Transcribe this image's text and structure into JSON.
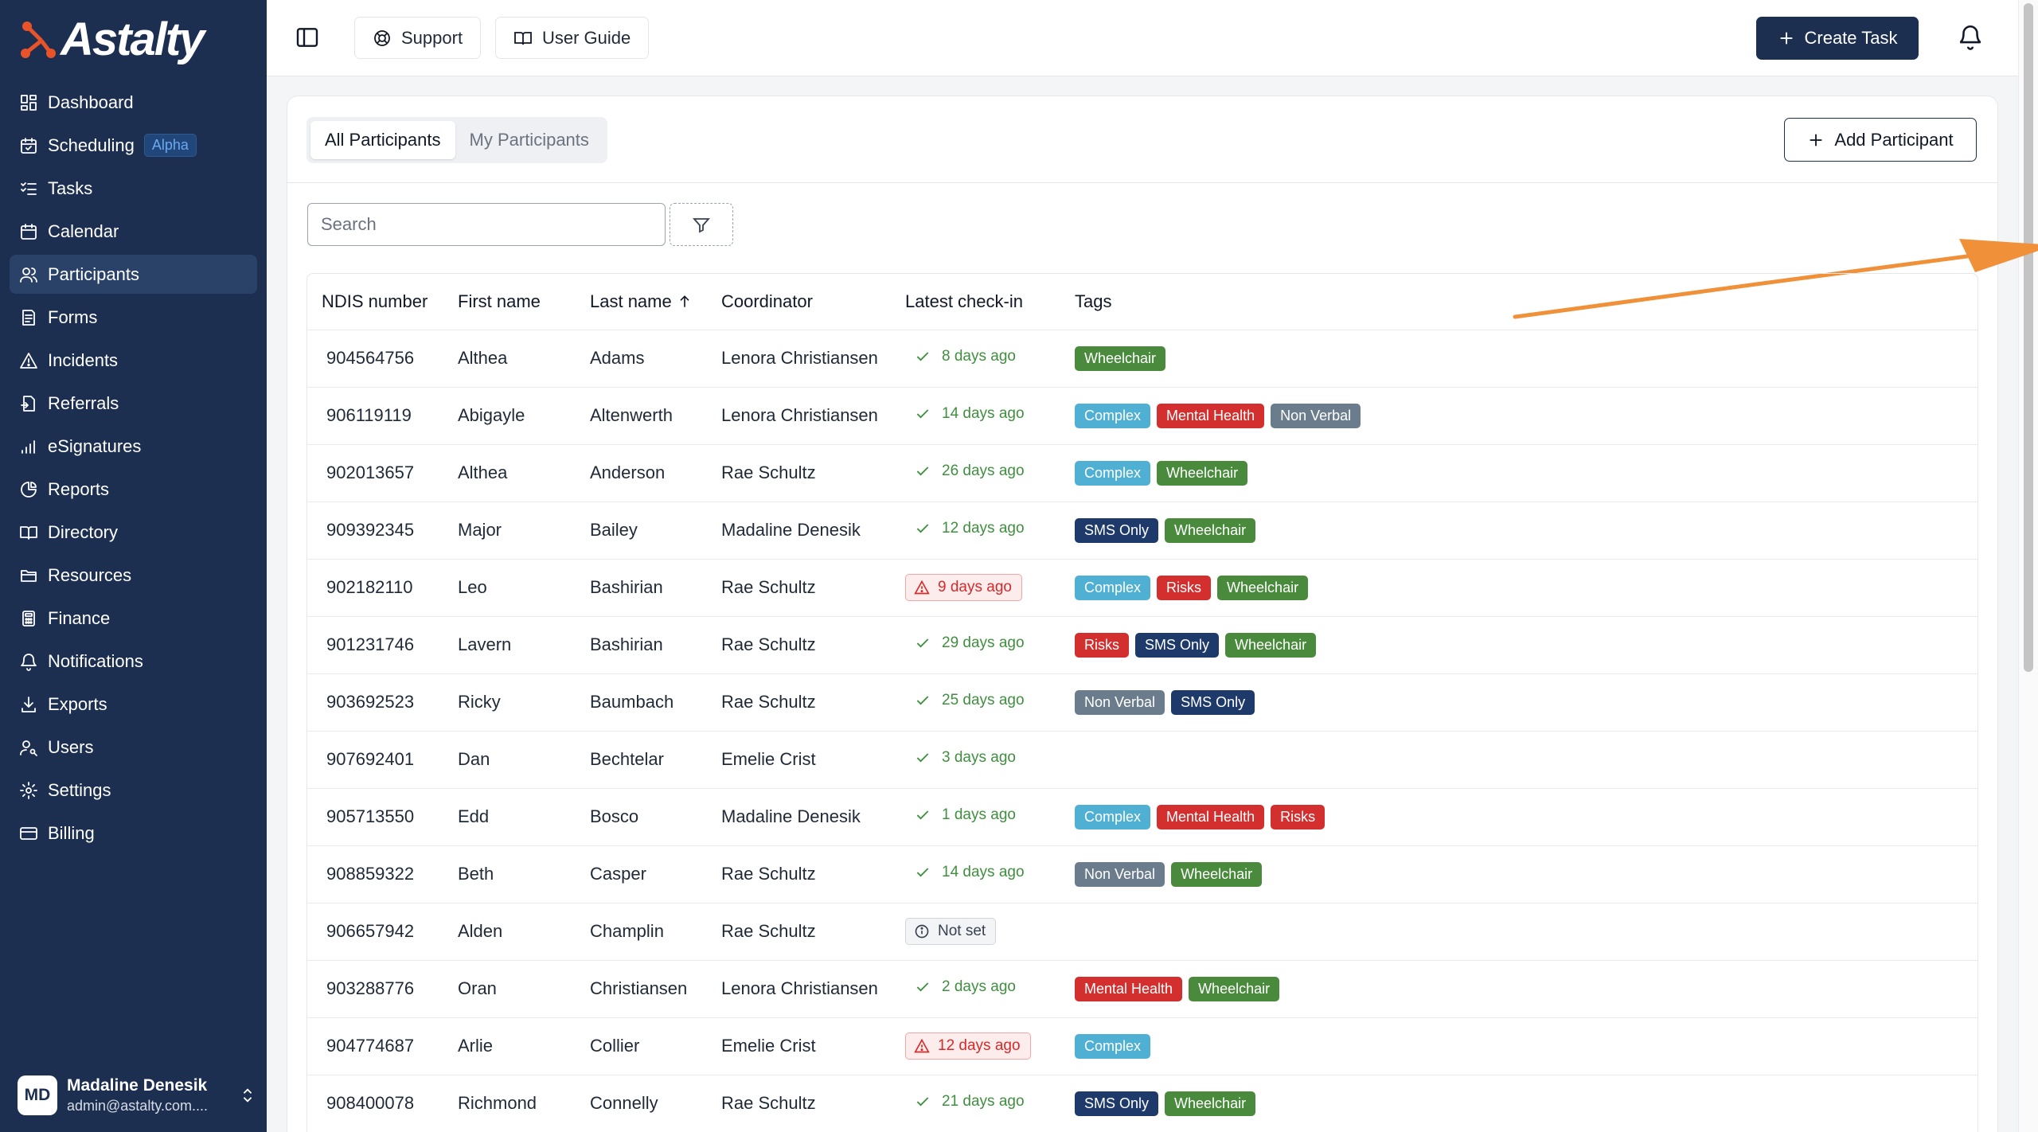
{
  "brand": {
    "name": "Astalty",
    "accent": "#e8532a"
  },
  "sidebar": {
    "items": [
      {
        "label": "Dashboard",
        "icon": "dashboard-icon"
      },
      {
        "label": "Scheduling",
        "icon": "calendar-check-icon",
        "badge": "Alpha"
      },
      {
        "label": "Tasks",
        "icon": "tasks-icon"
      },
      {
        "label": "Calendar",
        "icon": "calendar-icon"
      },
      {
        "label": "Participants",
        "icon": "users-icon",
        "active": true
      },
      {
        "label": "Forms",
        "icon": "form-icon"
      },
      {
        "label": "Incidents",
        "icon": "warning-icon"
      },
      {
        "label": "Referrals",
        "icon": "referral-icon"
      },
      {
        "label": "eSignatures",
        "icon": "signal-icon"
      },
      {
        "label": "Reports",
        "icon": "pie-chart-icon"
      },
      {
        "label": "Directory",
        "icon": "book-icon"
      },
      {
        "label": "Resources",
        "icon": "folder-icon"
      },
      {
        "label": "Finance",
        "icon": "calculator-icon"
      },
      {
        "label": "Notifications",
        "icon": "bell-icon"
      },
      {
        "label": "Exports",
        "icon": "download-icon"
      },
      {
        "label": "Users",
        "icon": "user-key-icon"
      },
      {
        "label": "Settings",
        "icon": "gear-icon"
      },
      {
        "label": "Billing",
        "icon": "credit-card-icon"
      }
    ],
    "user": {
      "initials": "MD",
      "name": "Madaline Denesik",
      "email": "admin@astalty.com...."
    }
  },
  "topbar": {
    "support_label": "Support",
    "guide_label": "User Guide",
    "create_task_label": "Create Task"
  },
  "main": {
    "tabs": [
      {
        "label": "All Participants",
        "active": true
      },
      {
        "label": "My Participants",
        "active": false
      }
    ],
    "add_participant_label": "Add Participant",
    "search": {
      "placeholder": "Search",
      "value": ""
    },
    "table": {
      "headers": {
        "ndis": "NDIS number",
        "first": "First name",
        "last": "Last name",
        "coordinator": "Coordinator",
        "checkin": "Latest check-in",
        "tags": "Tags"
      },
      "rows": [
        {
          "ndis": "904564756",
          "first": "Althea",
          "last": "Adams",
          "coordinator": "Lenora Christiansen",
          "checkin": "8 days ago",
          "status": "ok",
          "tags": [
            "Wheelchair"
          ]
        },
        {
          "ndis": "906119119",
          "first": "Abigayle",
          "last": "Altenwerth",
          "coordinator": "Lenora Christiansen",
          "checkin": "14 days ago",
          "status": "ok",
          "tags": [
            "Complex",
            "Mental Health",
            "Non Verbal"
          ]
        },
        {
          "ndis": "902013657",
          "first": "Althea",
          "last": "Anderson",
          "coordinator": "Rae Schultz",
          "checkin": "26 days ago",
          "status": "ok",
          "tags": [
            "Complex",
            "Wheelchair"
          ]
        },
        {
          "ndis": "909392345",
          "first": "Major",
          "last": "Bailey",
          "coordinator": "Madaline Denesik",
          "checkin": "12 days ago",
          "status": "ok",
          "tags": [
            "SMS Only",
            "Wheelchair"
          ]
        },
        {
          "ndis": "902182110",
          "first": "Leo",
          "last": "Bashirian",
          "coordinator": "Rae Schultz",
          "checkin": "9 days ago",
          "status": "warn",
          "tags": [
            "Complex",
            "Risks",
            "Wheelchair"
          ]
        },
        {
          "ndis": "901231746",
          "first": "Lavern",
          "last": "Bashirian",
          "coordinator": "Rae Schultz",
          "checkin": "29 days ago",
          "status": "ok",
          "tags": [
            "Risks",
            "SMS Only",
            "Wheelchair"
          ]
        },
        {
          "ndis": "903692523",
          "first": "Ricky",
          "last": "Baumbach",
          "coordinator": "Rae Schultz",
          "checkin": "25 days ago",
          "status": "ok",
          "tags": [
            "Non Verbal",
            "SMS Only"
          ]
        },
        {
          "ndis": "907692401",
          "first": "Dan",
          "last": "Bechtelar",
          "coordinator": "Emelie Crist",
          "checkin": "3 days ago",
          "status": "ok",
          "tags": []
        },
        {
          "ndis": "905713550",
          "first": "Edd",
          "last": "Bosco",
          "coordinator": "Madaline Denesik",
          "checkin": "1 days ago",
          "status": "ok",
          "tags": [
            "Complex",
            "Mental Health",
            "Risks"
          ]
        },
        {
          "ndis": "908859322",
          "first": "Beth",
          "last": "Casper",
          "coordinator": "Rae Schultz",
          "checkin": "14 days ago",
          "status": "ok",
          "tags": [
            "Non Verbal",
            "Wheelchair"
          ]
        },
        {
          "ndis": "906657942",
          "first": "Alden",
          "last": "Champlin",
          "coordinator": "Rae Schultz",
          "checkin": "Not set",
          "status": "notset",
          "tags": []
        },
        {
          "ndis": "903288776",
          "first": "Oran",
          "last": "Christiansen",
          "coordinator": "Lenora Christiansen",
          "checkin": "2 days ago",
          "status": "ok",
          "tags": [
            "Mental Health",
            "Wheelchair"
          ]
        },
        {
          "ndis": "904774687",
          "first": "Arlie",
          "last": "Collier",
          "coordinator": "Emelie Crist",
          "checkin": "12 days ago",
          "status": "warn",
          "tags": [
            "Complex"
          ]
        },
        {
          "ndis": "908400078",
          "first": "Richmond",
          "last": "Connelly",
          "coordinator": "Rae Schultz",
          "checkin": "21 days ago",
          "status": "ok",
          "tags": [
            "SMS Only",
            "Wheelchair"
          ]
        }
      ]
    }
  }
}
